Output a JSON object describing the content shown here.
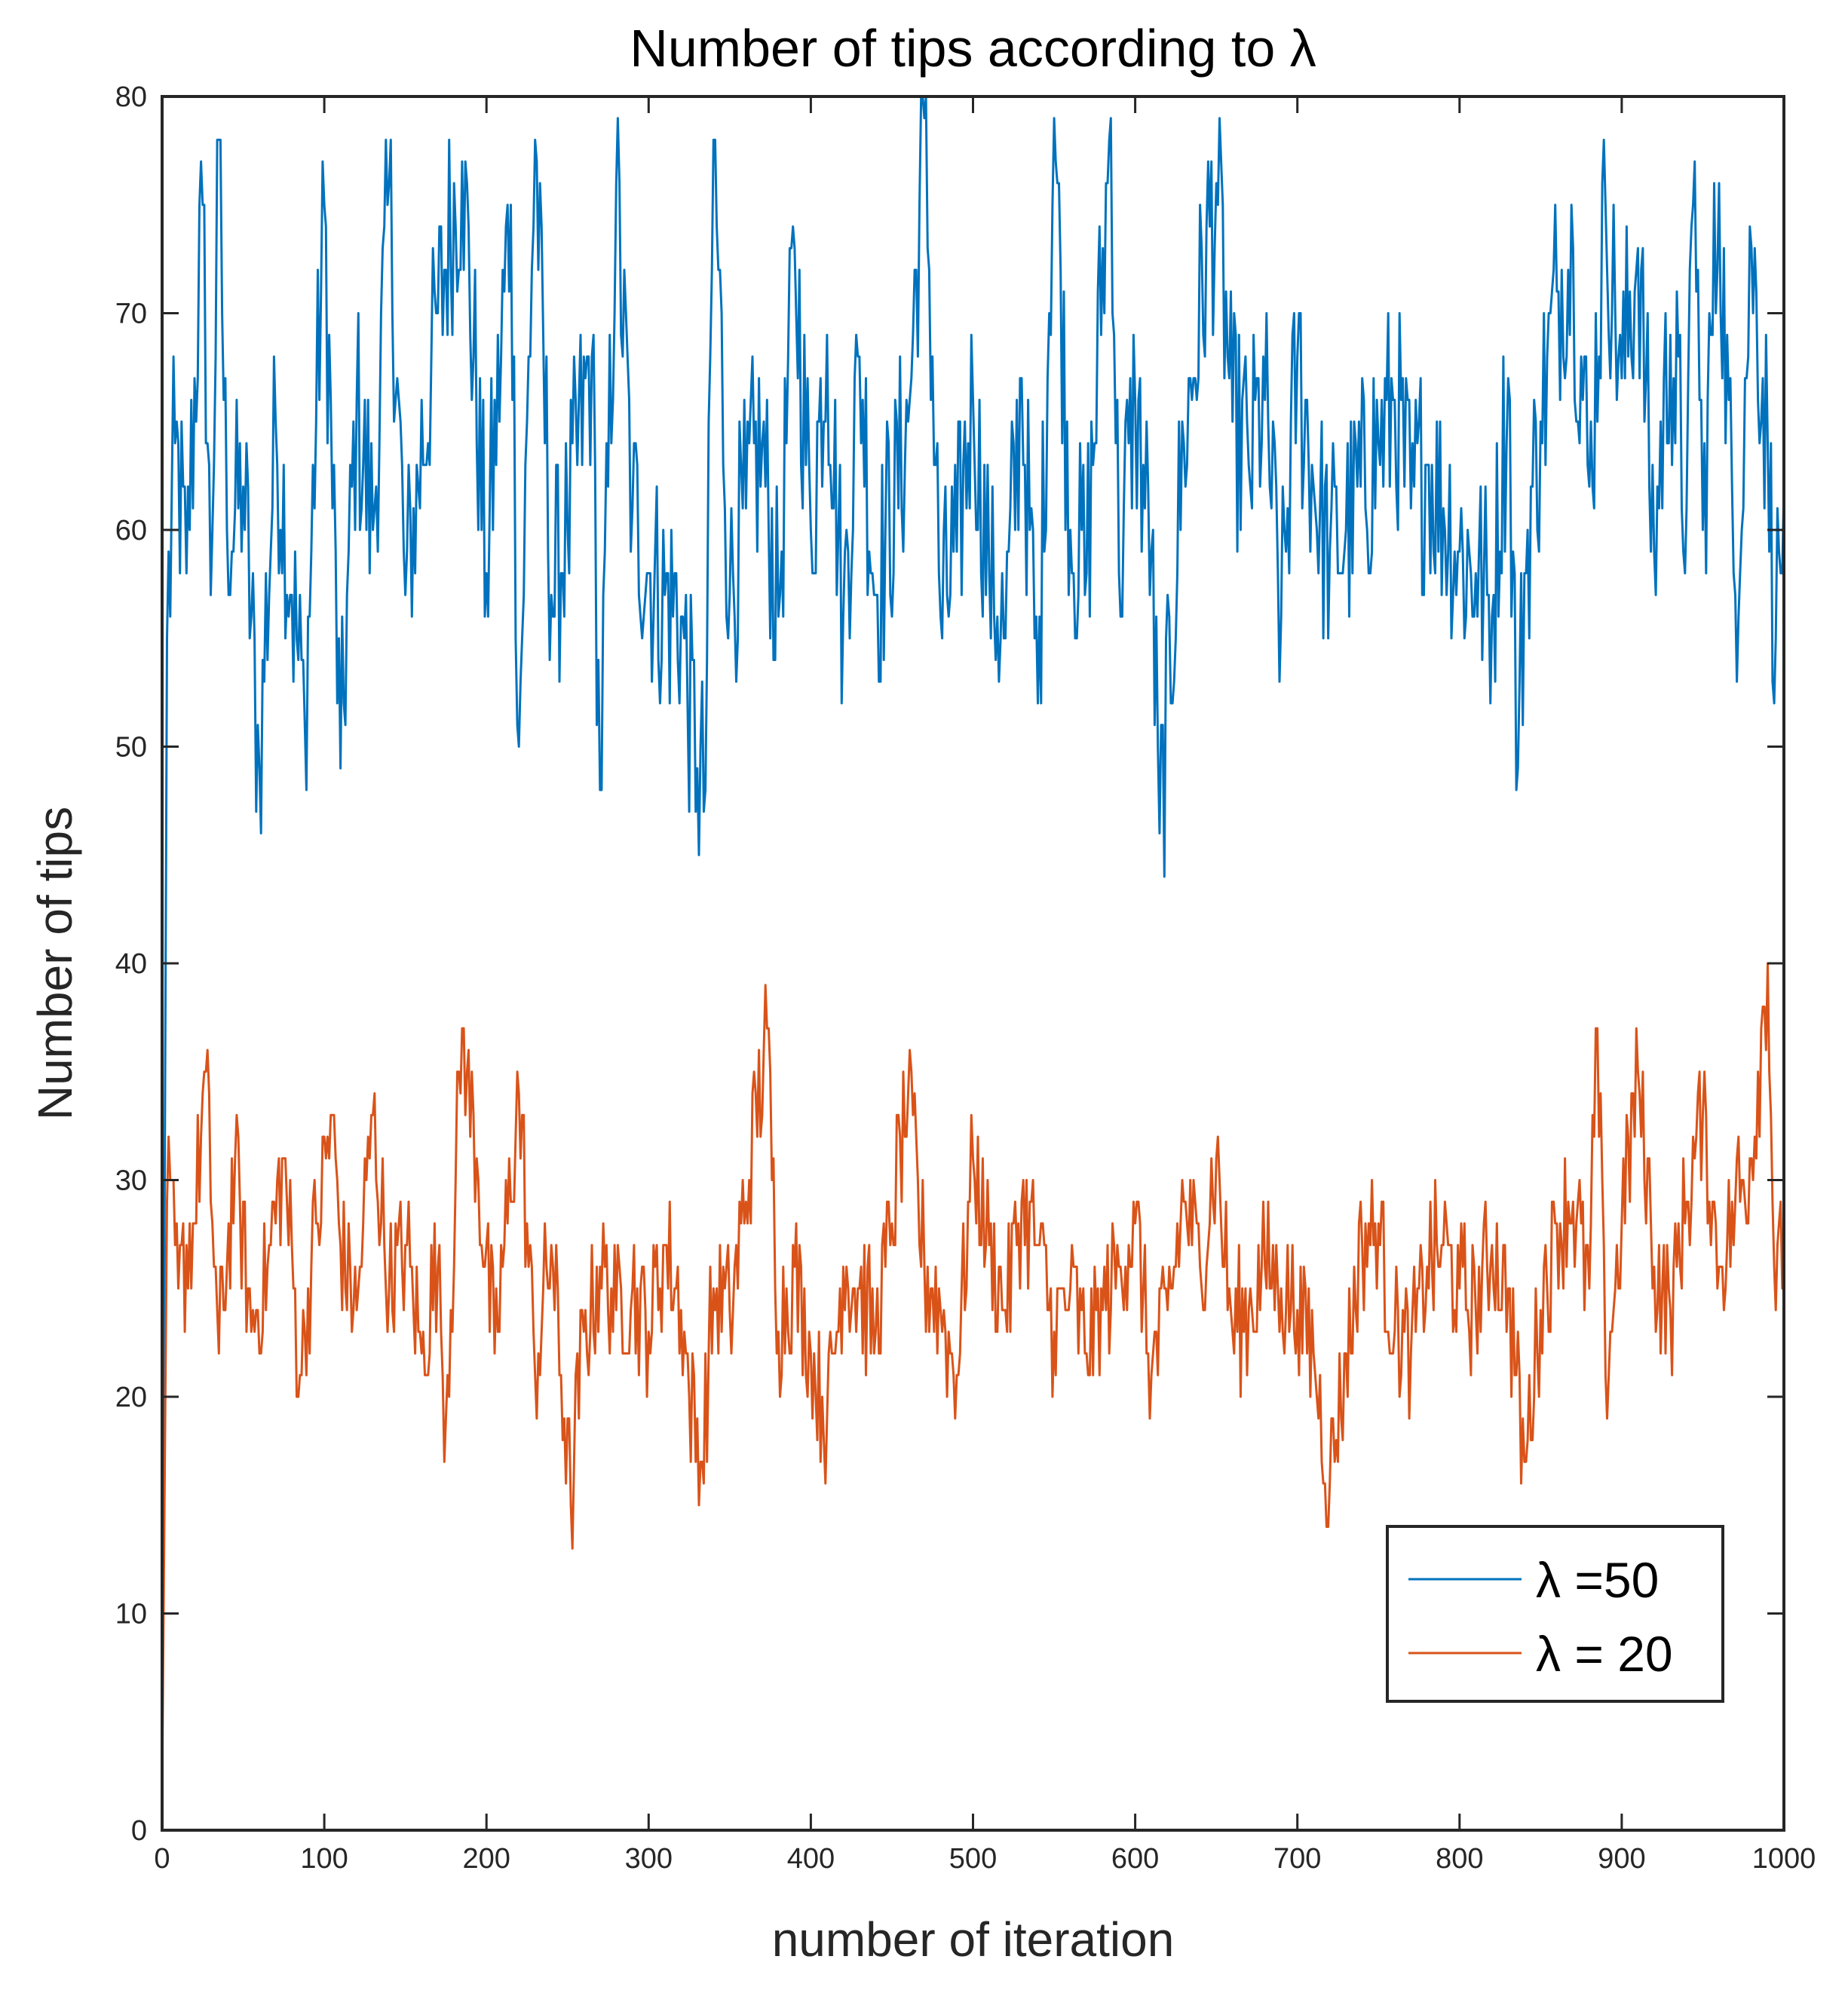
{
  "chart_data": {
    "type": "line",
    "title": "Number of tips according to λ",
    "xlabel": "number of iteration",
    "ylabel": "Number of tips",
    "xlim": [
      0,
      1000
    ],
    "ylim": [
      0,
      80
    ],
    "xticks": [
      0,
      100,
      200,
      300,
      400,
      500,
      600,
      700,
      800,
      900,
      1000
    ],
    "yticks": [
      0,
      10,
      20,
      30,
      40,
      50,
      60,
      70,
      80
    ],
    "grid": false,
    "legend_position": "bottom-right",
    "series": [
      {
        "name": "λ =50",
        "color": "#0072BD",
        "keypoints": [
          [
            0,
            2
          ],
          [
            3,
            55
          ],
          [
            8,
            64
          ],
          [
            15,
            58
          ],
          [
            25,
            75
          ],
          [
            30,
            57
          ],
          [
            35,
            78
          ],
          [
            40,
            60
          ],
          [
            50,
            62
          ],
          [
            60,
            49
          ],
          [
            70,
            65
          ],
          [
            80,
            57
          ],
          [
            88,
            51
          ],
          [
            100,
            75
          ],
          [
            110,
            49
          ],
          [
            120,
            66
          ],
          [
            130,
            60
          ],
          [
            140,
            76
          ],
          [
            150,
            57
          ],
          [
            170,
            70
          ],
          [
            185,
            77
          ],
          [
            200,
            58
          ],
          [
            215,
            75
          ],
          [
            220,
            50
          ],
          [
            230,
            78
          ],
          [
            240,
            57
          ],
          [
            250,
            60
          ],
          [
            265,
            68
          ],
          [
            270,
            48
          ],
          [
            280,
            76
          ],
          [
            290,
            61
          ],
          [
            300,
            58
          ],
          [
            320,
            56
          ],
          [
            330,
            49
          ],
          [
            335,
            48
          ],
          [
            340,
            78
          ],
          [
            350,
            57
          ],
          [
            360,
            61
          ],
          [
            370,
            64
          ],
          [
            380,
            56
          ],
          [
            390,
            73
          ],
          [
            400,
            60
          ],
          [
            410,
            69
          ],
          [
            420,
            56
          ],
          [
            430,
            68
          ],
          [
            440,
            57
          ],
          [
            460,
            65
          ],
          [
            470,
            79
          ],
          [
            480,
            56
          ],
          [
            490,
            59
          ],
          [
            500,
            66
          ],
          [
            510,
            58
          ],
          [
            520,
            55
          ],
          [
            530,
            67
          ],
          [
            540,
            52
          ],
          [
            550,
            79
          ],
          [
            560,
            60
          ],
          [
            570,
            58
          ],
          [
            585,
            79
          ],
          [
            590,
            58
          ],
          [
            600,
            66
          ],
          [
            610,
            59
          ],
          [
            615,
            46
          ],
          [
            630,
            64
          ],
          [
            650,
            76
          ],
          [
            660,
            65
          ],
          [
            670,
            63
          ],
          [
            680,
            66
          ],
          [
            690,
            56
          ],
          [
            700,
            68
          ],
          [
            710,
            62
          ],
          [
            720,
            59
          ],
          [
            730,
            60
          ],
          [
            750,
            64
          ],
          [
            760,
            66
          ],
          [
            770,
            61
          ],
          [
            780,
            63
          ],
          [
            800,
            59
          ],
          [
            810,
            58
          ],
          [
            820,
            56
          ],
          [
            830,
            67
          ],
          [
            836,
            49
          ],
          [
            840,
            58
          ],
          [
            850,
            65
          ],
          [
            860,
            71
          ],
          [
            870,
            73
          ],
          [
            880,
            62
          ],
          [
            890,
            75
          ],
          [
            900,
            67
          ],
          [
            910,
            73
          ],
          [
            920,
            59
          ],
          [
            930,
            69
          ],
          [
            940,
            61
          ],
          [
            945,
            77
          ],
          [
            950,
            60
          ],
          [
            960,
            76
          ],
          [
            970,
            57
          ],
          [
            980,
            73
          ],
          [
            990,
            64
          ],
          [
            995,
            55
          ],
          [
            1000,
            62
          ]
        ]
      },
      {
        "name": "λ = 20",
        "color": "#D95319",
        "keypoints": [
          [
            0,
            2
          ],
          [
            3,
            29
          ],
          [
            10,
            25
          ],
          [
            20,
            28
          ],
          [
            27,
            35
          ],
          [
            35,
            22
          ],
          [
            45,
            31
          ],
          [
            55,
            23
          ],
          [
            65,
            26
          ],
          [
            75,
            31
          ],
          [
            85,
            21
          ],
          [
            95,
            28
          ],
          [
            105,
            33
          ],
          [
            110,
            27
          ],
          [
            120,
            24
          ],
          [
            130,
            33
          ],
          [
            140,
            25
          ],
          [
            150,
            27
          ],
          [
            160,
            22
          ],
          [
            170,
            26
          ],
          [
            175,
            19
          ],
          [
            185,
            37
          ],
          [
            195,
            30
          ],
          [
            205,
            22
          ],
          [
            220,
            34
          ],
          [
            230,
            21
          ],
          [
            240,
            27
          ],
          [
            252,
            15
          ],
          [
            260,
            23
          ],
          [
            270,
            26
          ],
          [
            280,
            24
          ],
          [
            290,
            25
          ],
          [
            300,
            23
          ],
          [
            310,
            27
          ],
          [
            320,
            24
          ],
          [
            325,
            20
          ],
          [
            333,
            17
          ],
          [
            340,
            25
          ],
          [
            350,
            24
          ],
          [
            360,
            29
          ],
          [
            373,
            37
          ],
          [
            380,
            23
          ],
          [
            390,
            26
          ],
          [
            400,
            22
          ],
          [
            410,
            19
          ],
          [
            420,
            26
          ],
          [
            430,
            25
          ],
          [
            440,
            23
          ],
          [
            450,
            28
          ],
          [
            460,
            34
          ],
          [
            470,
            26
          ],
          [
            480,
            24
          ],
          [
            490,
            21
          ],
          [
            500,
            31
          ],
          [
            510,
            27
          ],
          [
            520,
            24
          ],
          [
            530,
            29
          ],
          [
            540,
            27
          ],
          [
            550,
            23
          ],
          [
            560,
            25
          ],
          [
            570,
            22
          ],
          [
            580,
            24
          ],
          [
            590,
            26
          ],
          [
            600,
            28
          ],
          [
            610,
            21
          ],
          [
            620,
            24
          ],
          [
            630,
            29
          ],
          [
            640,
            26
          ],
          [
            650,
            31
          ],
          [
            660,
            23
          ],
          [
            670,
            24
          ],
          [
            680,
            26
          ],
          [
            690,
            25
          ],
          [
            700,
            24
          ],
          [
            710,
            22
          ],
          [
            720,
            16
          ],
          [
            730,
            22
          ],
          [
            740,
            27
          ],
          [
            750,
            28
          ],
          [
            760,
            23
          ],
          [
            770,
            22
          ],
          [
            780,
            26
          ],
          [
            790,
            27
          ],
          [
            800,
            25
          ],
          [
            810,
            24
          ],
          [
            820,
            27
          ],
          [
            830,
            25
          ],
          [
            840,
            17
          ],
          [
            850,
            24
          ],
          [
            860,
            28
          ],
          [
            870,
            29
          ],
          [
            880,
            25
          ],
          [
            885,
            37
          ],
          [
            890,
            21
          ],
          [
            900,
            28
          ],
          [
            910,
            35
          ],
          [
            920,
            26
          ],
          [
            930,
            24
          ],
          [
            940,
            29
          ],
          [
            950,
            33
          ],
          [
            960,
            26
          ],
          [
            970,
            29
          ],
          [
            980,
            31
          ],
          [
            990,
            40
          ],
          [
            995,
            24
          ],
          [
            1000,
            28
          ]
        ]
      }
    ]
  }
}
